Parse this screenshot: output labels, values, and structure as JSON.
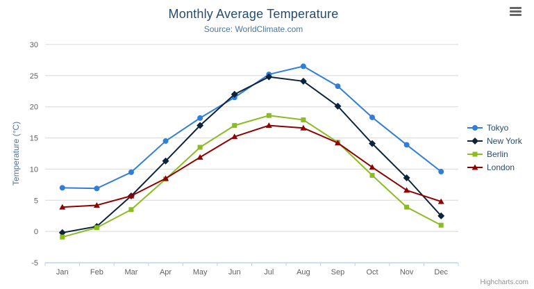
{
  "chart_data": {
    "type": "line",
    "title": "Monthly Average Temperature",
    "subtitle": "Source: WorldClimate.com",
    "xlabel": "",
    "ylabel": "Temperature (°C)",
    "categories": [
      "Jan",
      "Feb",
      "Mar",
      "Apr",
      "May",
      "Jun",
      "Jul",
      "Aug",
      "Sep",
      "Oct",
      "Nov",
      "Dec"
    ],
    "ylim": [
      -5,
      30
    ],
    "ytick_interval": 5,
    "grid": true,
    "legend_position": "right",
    "series": [
      {
        "name": "Tokyo",
        "color": "#2f7ed8",
        "marker": "circle",
        "values": [
          7.0,
          6.9,
          9.5,
          14.5,
          18.2,
          21.5,
          25.2,
          26.5,
          23.3,
          18.3,
          13.9,
          9.6
        ]
      },
      {
        "name": "New York",
        "color": "#0d233a",
        "marker": "diamond",
        "values": [
          -0.2,
          0.8,
          5.7,
          11.3,
          17.0,
          22.0,
          24.8,
          24.1,
          20.1,
          14.1,
          8.6,
          2.5
        ]
      },
      {
        "name": "Berlin",
        "color": "#8bbc21",
        "marker": "square",
        "values": [
          -0.9,
          0.6,
          3.5,
          8.4,
          13.5,
          17.0,
          18.6,
          17.9,
          14.3,
          9.0,
          3.9,
          1.0
        ]
      },
      {
        "name": "London",
        "color": "#910000",
        "marker": "triangle",
        "values": [
          3.9,
          4.2,
          5.7,
          8.5,
          11.9,
          15.2,
          17.0,
          16.6,
          14.2,
          10.3,
          6.6,
          4.8
        ]
      }
    ],
    "colors": {
      "grid": "#D8D8D8",
      "axis_line": "#C0D0E0",
      "tick_label": "#606060",
      "title_text": "#274b6d",
      "subtitle_text": "#4d759e"
    }
  },
  "credits": {
    "label": "Highcharts.com"
  }
}
